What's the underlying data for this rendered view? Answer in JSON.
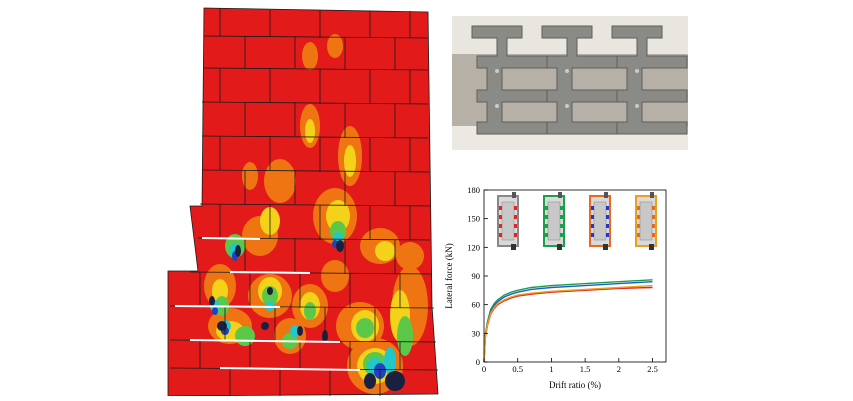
{
  "figure": {
    "fem_contour": {
      "title": ""
    },
    "photo": {
      "title": ""
    }
  },
  "chart_data": {
    "type": "line",
    "title": "",
    "xlabel": "Drift ratio (%)",
    "ylabel": "Lateral force (kN)",
    "xlim": [
      0,
      2.7
    ],
    "ylim": [
      0,
      180
    ],
    "xticks": [
      "0",
      "0.5",
      "1",
      "1.5",
      "2",
      "2.5"
    ],
    "yticks": [
      "0",
      "30",
      "60",
      "90",
      "120",
      "150",
      "180"
    ],
    "grid": false,
    "legend": "inset wall-schematic icons (top)",
    "series": [
      {
        "color": "#1aa04a",
        "x": [
          0,
          0.02,
          0.05,
          0.1,
          0.15,
          0.2,
          0.3,
          0.4,
          0.5,
          0.7,
          1.0,
          1.5,
          2.0,
          2.5
        ],
        "y": [
          0,
          28,
          42,
          55,
          61,
          65,
          70,
          73,
          75,
          78,
          80,
          82,
          84,
          86
        ]
      },
      {
        "color": "#2060c8",
        "x": [
          0,
          0.02,
          0.05,
          0.1,
          0.15,
          0.2,
          0.3,
          0.4,
          0.5,
          0.7,
          1.0,
          1.5,
          2.0,
          2.5
        ],
        "y": [
          0,
          27,
          40,
          53,
          59,
          63,
          68,
          71,
          73,
          76,
          78,
          80,
          82,
          84
        ]
      },
      {
        "color": "#e8221e",
        "x": [
          0,
          0.02,
          0.05,
          0.1,
          0.15,
          0.2,
          0.3,
          0.4,
          0.5,
          0.7,
          1.0,
          1.5,
          2.0,
          2.5
        ],
        "y": [
          0,
          25,
          38,
          50,
          56,
          60,
          64,
          67,
          69,
          71,
          73,
          75,
          77,
          78
        ]
      },
      {
        "color": "#e8a01e",
        "x": [
          0,
          0.02,
          0.05,
          0.1,
          0.15,
          0.2,
          0.3,
          0.4,
          0.5,
          0.7,
          1.0,
          1.5,
          2.0,
          2.5
        ],
        "y": [
          0,
          26,
          39,
          51,
          57,
          61,
          65,
          68,
          70,
          72,
          74,
          76,
          78,
          80
        ]
      }
    ],
    "insets": [
      {
        "frame": "#888888",
        "accent": "#e8221e"
      },
      {
        "frame": "#1aa04a",
        "accent": "#1aa04a"
      },
      {
        "frame": "#e86a1e",
        "accent": "#2038d0"
      },
      {
        "frame": "#e8a01e",
        "accent": "#e86a1e"
      }
    ]
  }
}
